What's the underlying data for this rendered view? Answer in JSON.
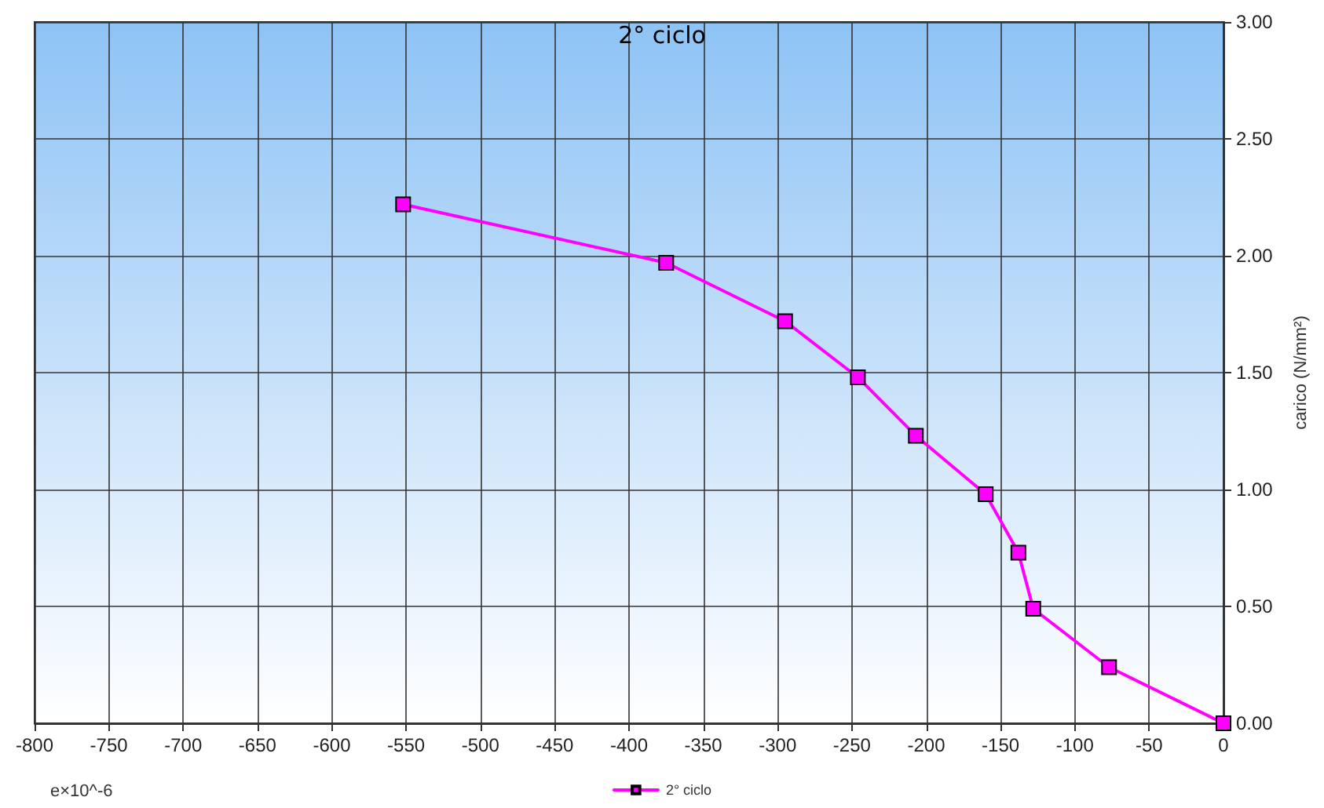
{
  "chart_data": {
    "type": "line",
    "title": "2° ciclo",
    "xlabel": "e×10^-6",
    "ylabel": "carico (N/mm²)",
    "x": [
      -552,
      -375,
      -295,
      -246,
      -207,
      -160,
      -138,
      -128,
      -77,
      0
    ],
    "series": [
      {
        "name": "2° ciclo",
        "color": "#ff00ff",
        "values": [
          2.22,
          1.97,
          1.72,
          1.48,
          1.23,
          0.98,
          0.73,
          0.49,
          0.24,
          0.0
        ]
      }
    ],
    "xlim": [
      -800,
      0
    ],
    "xticks": [
      -800,
      -750,
      -700,
      -650,
      -600,
      -550,
      -500,
      -450,
      -400,
      -350,
      -300,
      -250,
      -200,
      -150,
      -100,
      -50,
      0
    ],
    "ylim": [
      0,
      3
    ],
    "yticks": [
      {
        "value": 0,
        "label": "0.00"
      },
      {
        "value": 0.5,
        "label": "0.50"
      },
      {
        "value": 1,
        "label": "1.00"
      },
      {
        "value": 1.5,
        "label": "1.50"
      },
      {
        "value": 2,
        "label": "2.00"
      },
      {
        "value": 2.5,
        "label": "2.50"
      },
      {
        "value": 3,
        "label": "3.00"
      }
    ],
    "grid": true,
    "legend": "bottom",
    "marker": "square",
    "line_style": "solid"
  }
}
